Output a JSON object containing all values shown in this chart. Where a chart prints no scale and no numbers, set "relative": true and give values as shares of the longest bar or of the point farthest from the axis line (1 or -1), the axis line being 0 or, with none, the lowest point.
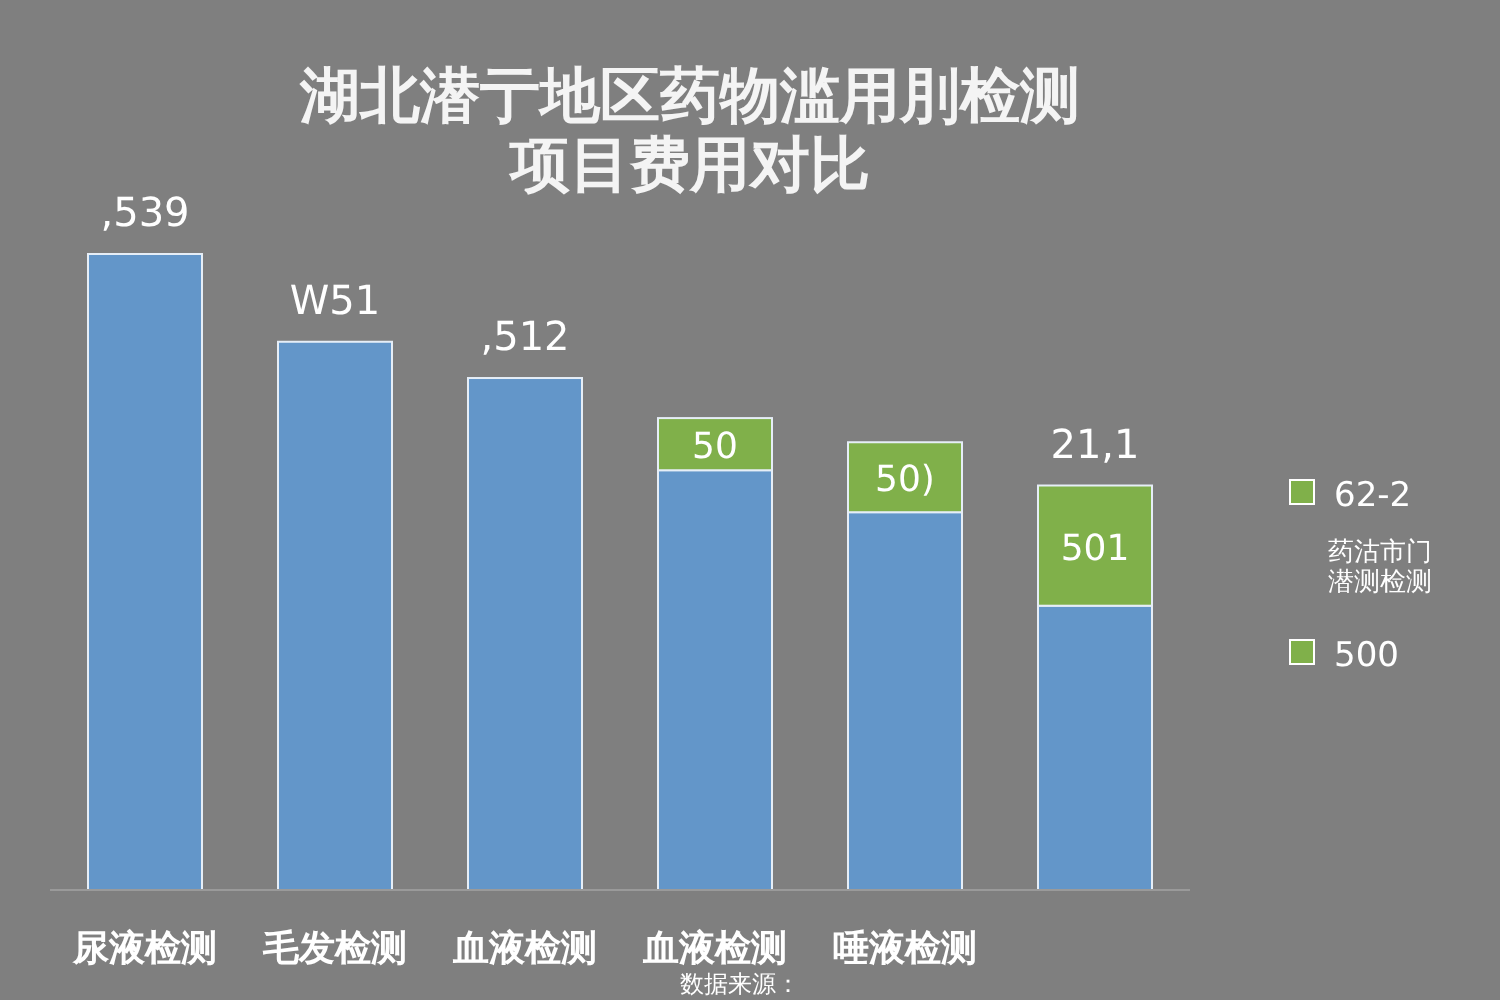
{
  "chart_data": {
    "type": "bar",
    "stacked": true,
    "relative": true,
    "title": "湖北潜亍地区药物滥用刖检测项目费用对比",
    "categories": [
      "尿液检测",
      "毛发检测",
      "血液检测",
      "血液检测",
      "唾液检测",
      null
    ],
    "series": [
      {
        "color": "#6396c9",
        "values": [
          1,
          0.862,
          0.805,
          0.66,
          0.594,
          0.447
        ]
      },
      {
        "color": "#80b04a",
        "values": [
          null,
          null,
          null,
          0.082,
          0.11,
          0.189
        ]
      }
    ],
    "annotations": [
      ",539",
      "W51",
      ",512",
      "50",
      "50)",
      "501",
      "21,1",
      "62-2",
      "药沽市门潜测检测",
      "500",
      "数据来源："
    ]
  }
}
